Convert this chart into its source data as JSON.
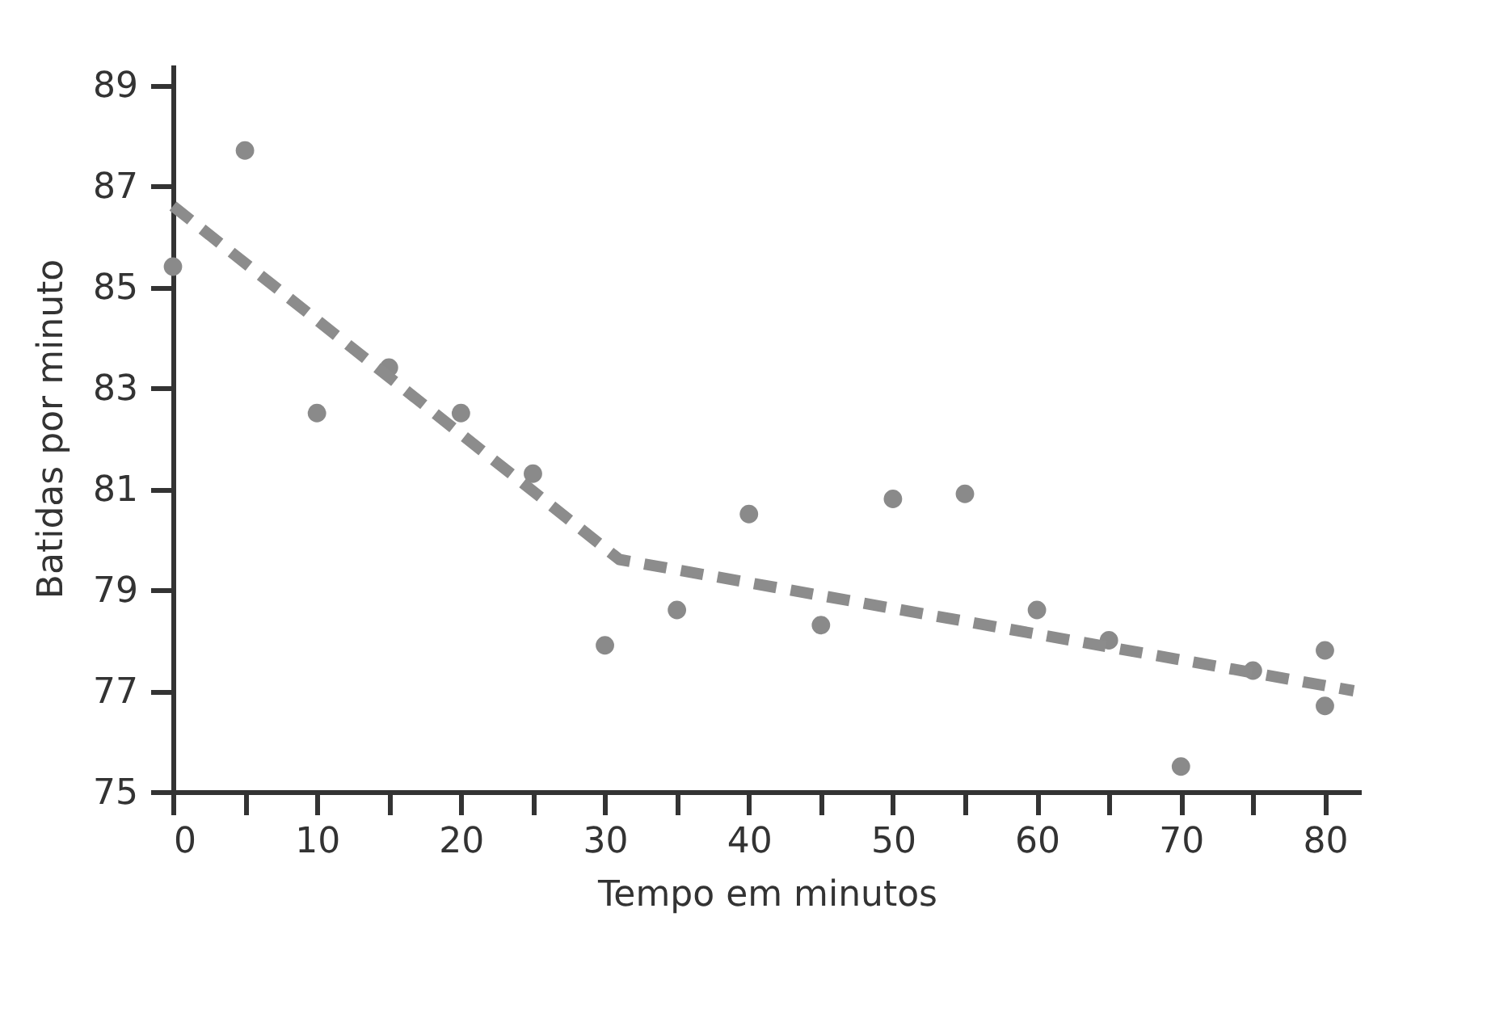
{
  "chart_data": {
    "type": "scatter",
    "xlabel": "Tempo em minutos",
    "ylabel": "Batidas por minuto",
    "xlim": [
      0,
      82.5
    ],
    "ylim": [
      75,
      89.4
    ],
    "xticks": [
      0,
      {
        "value": 5,
        "label": null
      },
      10,
      {
        "value": 15,
        "label": null
      },
      20,
      {
        "value": 25,
        "label": null
      },
      30,
      {
        "value": 35,
        "label": null
      },
      40,
      {
        "value": 45,
        "label": null
      },
      50,
      {
        "value": 55,
        "label": null
      },
      60,
      {
        "value": 65,
        "label": null
      },
      70,
      {
        "value": 75,
        "label": null
      },
      80
    ],
    "yticks": [
      75,
      77,
      79,
      81,
      83,
      85,
      87,
      89
    ],
    "grid": false,
    "series": [
      {
        "marker": "circle",
        "color": "#8a8a8a",
        "x": [
          0,
          5,
          10,
          15,
          20,
          25,
          30,
          35,
          40,
          45,
          50,
          55,
          60,
          65,
          70,
          75,
          80,
          80
        ],
        "values": [
          85.4,
          87.7,
          82.5,
          83.4,
          82.5,
          81.3,
          77.9,
          78.6,
          80.5,
          78.3,
          80.8,
          80.9,
          78.6,
          78.0,
          75.5,
          77.4,
          77.8,
          76.7
        ]
      },
      {
        "type": "line",
        "color": "#8c8c8c",
        "line_style": "dashed",
        "marker": "none",
        "x": [
          0,
          31,
          82
        ],
        "values": [
          86.6,
          79.6,
          77.0
        ]
      }
    ]
  }
}
